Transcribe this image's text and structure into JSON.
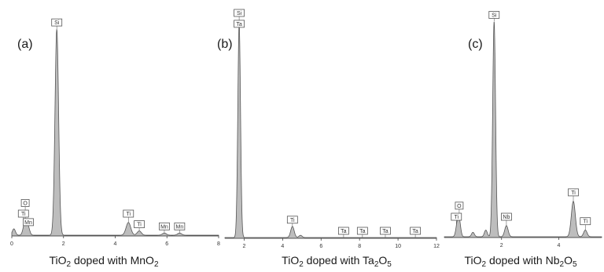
{
  "chart_data": [
    {
      "type": "area",
      "panel_label": "(a)",
      "caption": {
        "main": "TiO",
        "sub1": "2",
        "mid": " doped with MnO",
        "sub2": "2",
        "tail": ""
      },
      "xlim": [
        0,
        8
      ],
      "ylim": [
        0,
        100
      ],
      "ticks": [
        {
          "value": 0,
          "label": "0"
        },
        {
          "value": 2,
          "label": "2"
        },
        {
          "value": 4,
          "label": "4"
        },
        {
          "value": 6,
          "label": "6"
        },
        {
          "value": 8,
          "label": "8"
        }
      ],
      "peaks": [
        {
          "x": 0.08,
          "height": 3,
          "width": 0.06
        },
        {
          "x": 0.52,
          "height": 7,
          "width": 0.07
        },
        {
          "x": 0.64,
          "height": 3,
          "width": 0.06
        },
        {
          "x": 1.74,
          "height": 97,
          "width": 0.07
        },
        {
          "x": 4.51,
          "height": 6,
          "width": 0.09
        },
        {
          "x": 4.93,
          "height": 2,
          "width": 0.08
        },
        {
          "x": 5.9,
          "height": 1,
          "width": 0.08
        },
        {
          "x": 6.49,
          "height": 1,
          "width": 0.08
        }
      ],
      "annotations": [
        {
          "label": "Si",
          "x": 1.74,
          "level": 97
        },
        {
          "label": "O",
          "x": 0.52,
          "level": 12
        },
        {
          "label": "Ti",
          "x": 0.45,
          "level": 7
        },
        {
          "label": "Mn",
          "x": 0.64,
          "level": 3
        },
        {
          "label": "Ti",
          "x": 4.51,
          "level": 7
        },
        {
          "label": "Ti",
          "x": 4.93,
          "level": 2
        },
        {
          "label": "Mn",
          "x": 5.9,
          "level": 1
        },
        {
          "label": "Mn",
          "x": 6.49,
          "level": 1
        }
      ]
    },
    {
      "type": "area",
      "panel_label": "(b)",
      "caption": {
        "main": "TiO",
        "sub1": "2",
        "mid": " doped with Ta",
        "sub2": "2",
        "tail": "O",
        "sub3": "5"
      },
      "xlim": [
        1,
        12
      ],
      "ylim": [
        0,
        100
      ],
      "ticks": [
        {
          "value": 2,
          "label": "2"
        },
        {
          "value": 4,
          "label": "4"
        },
        {
          "value": 6,
          "label": "6"
        },
        {
          "value": 8,
          "label": "8"
        },
        {
          "value": 10,
          "label": "10"
        },
        {
          "value": 12,
          "label": "12"
        }
      ],
      "peaks": [
        {
          "x": 1.74,
          "height": 96,
          "width": 0.07
        },
        {
          "x": 4.51,
          "height": 5,
          "width": 0.09
        },
        {
          "x": 4.93,
          "height": 1,
          "width": 0.08
        }
      ],
      "annotations": [
        {
          "label": "Si",
          "x": 1.74,
          "level": 100
        },
        {
          "label": "Ta",
          "x": 1.74,
          "level": 93
        },
        {
          "label": "Ti",
          "x": 4.51,
          "level": 5
        },
        {
          "label": "Ta",
          "x": 7.17,
          "level": 0
        },
        {
          "label": "Ta",
          "x": 8.15,
          "level": 0
        },
        {
          "label": "Ta",
          "x": 9.34,
          "level": 0
        },
        {
          "label": "Ta",
          "x": 10.9,
          "level": 0
        }
      ]
    },
    {
      "type": "area",
      "panel_label": "(c)",
      "caption": {
        "main": "TiO",
        "sub1": "2",
        "mid": " doped with Nb",
        "sub2": "2",
        "tail": "O",
        "sub3": "5"
      },
      "xlim": [
        0,
        5.5
      ],
      "ylim": [
        0,
        100
      ],
      "ticks": [
        {
          "value": 2,
          "label": "2"
        },
        {
          "value": 4,
          "label": "4"
        }
      ],
      "peaks": [
        {
          "x": 0.45,
          "height": 5,
          "width": 0.05
        },
        {
          "x": 0.52,
          "height": 7,
          "width": 0.05
        },
        {
          "x": 1.0,
          "height": 2,
          "width": 0.05
        },
        {
          "x": 1.45,
          "height": 3,
          "width": 0.05
        },
        {
          "x": 1.74,
          "height": 97,
          "width": 0.05
        },
        {
          "x": 2.17,
          "height": 5,
          "width": 0.06
        },
        {
          "x": 4.51,
          "height": 16,
          "width": 0.07
        },
        {
          "x": 4.93,
          "height": 3,
          "width": 0.06
        }
      ],
      "annotations": [
        {
          "label": "Si",
          "x": 1.74,
          "level": 97
        },
        {
          "label": "O",
          "x": 0.52,
          "level": 11
        },
        {
          "label": "Ti",
          "x": 0.42,
          "level": 6
        },
        {
          "label": "Nb",
          "x": 2.17,
          "level": 6
        },
        {
          "label": "Ti",
          "x": 4.51,
          "level": 17
        },
        {
          "label": "Ti",
          "x": 4.93,
          "level": 4
        }
      ]
    }
  ]
}
